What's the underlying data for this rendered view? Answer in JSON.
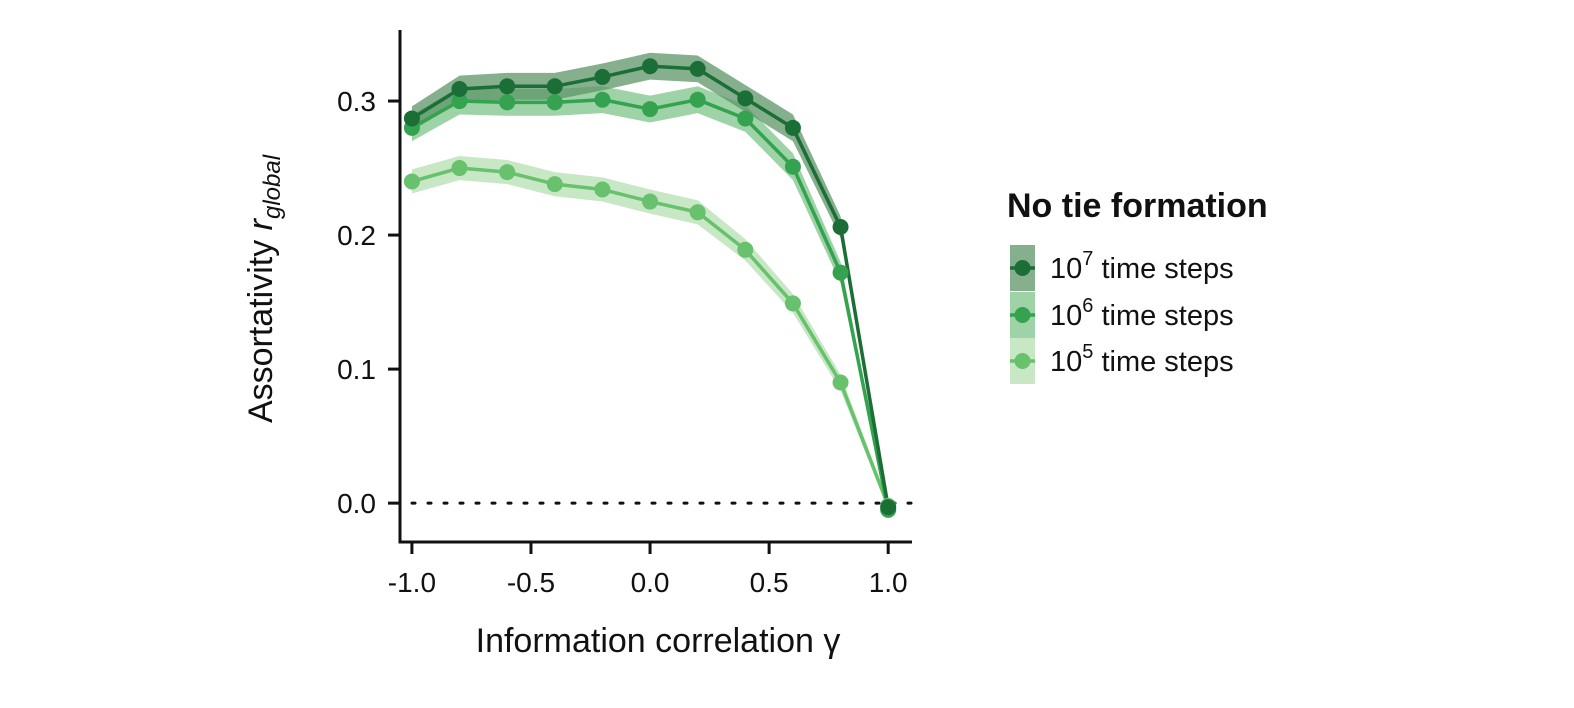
{
  "chart_data": {
    "type": "line",
    "xlabel": "Information correlation γ",
    "ylabel_main": "Assortativity ",
    "ylabel_var": "r",
    "ylabel_sub": "global",
    "xlim": [
      -1.05,
      1.1
    ],
    "ylim": [
      -0.029,
      0.353
    ],
    "x_ticks": [
      -1.0,
      -0.5,
      0.0,
      0.5,
      1.0
    ],
    "x_tick_labels": [
      "-1.0",
      "-0.5",
      "0.0",
      "0.5",
      "1.0"
    ],
    "y_ticks": [
      0.0,
      0.1,
      0.2,
      0.3
    ],
    "y_tick_labels": [
      "0.0",
      "0.1",
      "0.2",
      "0.3"
    ],
    "reference_line": {
      "y": 0.0,
      "style": "dotted"
    },
    "x": [
      -1.0,
      -0.8,
      -0.6,
      -0.4,
      -0.2,
      0.0,
      0.2,
      0.4,
      0.6,
      0.8,
      1.0
    ],
    "legend": {
      "title": "No tie formation",
      "placement": "right"
    },
    "series": [
      {
        "name_base": "10",
        "name_exp": "7",
        "name_rest": " time steps",
        "color": "#1b6e36",
        "band_color": "#5e9468",
        "values": [
          0.287,
          0.309,
          0.311,
          0.311,
          0.318,
          0.326,
          0.324,
          0.302,
          0.28,
          0.206,
          -0.003
        ],
        "lower": [
          0.278,
          0.299,
          0.301,
          0.301,
          0.308,
          0.316,
          0.314,
          0.292,
          0.27,
          0.198,
          -0.006
        ],
        "upper": [
          0.296,
          0.319,
          0.321,
          0.321,
          0.328,
          0.336,
          0.334,
          0.312,
          0.29,
          0.214,
          0.0
        ]
      },
      {
        "name_base": "10",
        "name_exp": "6",
        "name_rest": " time steps",
        "color": "#34a24f",
        "band_color": "#7cc48a",
        "values": [
          0.28,
          0.3,
          0.299,
          0.299,
          0.301,
          0.294,
          0.301,
          0.287,
          0.251,
          0.172,
          -0.005
        ],
        "lower": [
          0.27,
          0.29,
          0.289,
          0.289,
          0.291,
          0.284,
          0.291,
          0.277,
          0.241,
          0.164,
          -0.008
        ],
        "upper": [
          0.29,
          0.31,
          0.309,
          0.309,
          0.311,
          0.304,
          0.311,
          0.297,
          0.261,
          0.18,
          -0.002
        ]
      },
      {
        "name_base": "10",
        "name_exp": "5",
        "name_rest": " time steps",
        "color": "#68c16d",
        "band_color": "#b4dfb2",
        "values": [
          0.24,
          0.25,
          0.247,
          0.238,
          0.234,
          0.225,
          0.217,
          0.189,
          0.149,
          0.09,
          -0.002
        ],
        "lower": [
          0.231,
          0.241,
          0.238,
          0.229,
          0.225,
          0.216,
          0.208,
          0.181,
          0.142,
          0.084,
          -0.005
        ],
        "upper": [
          0.249,
          0.259,
          0.256,
          0.247,
          0.243,
          0.234,
          0.226,
          0.197,
          0.156,
          0.096,
          0.001
        ]
      }
    ]
  }
}
